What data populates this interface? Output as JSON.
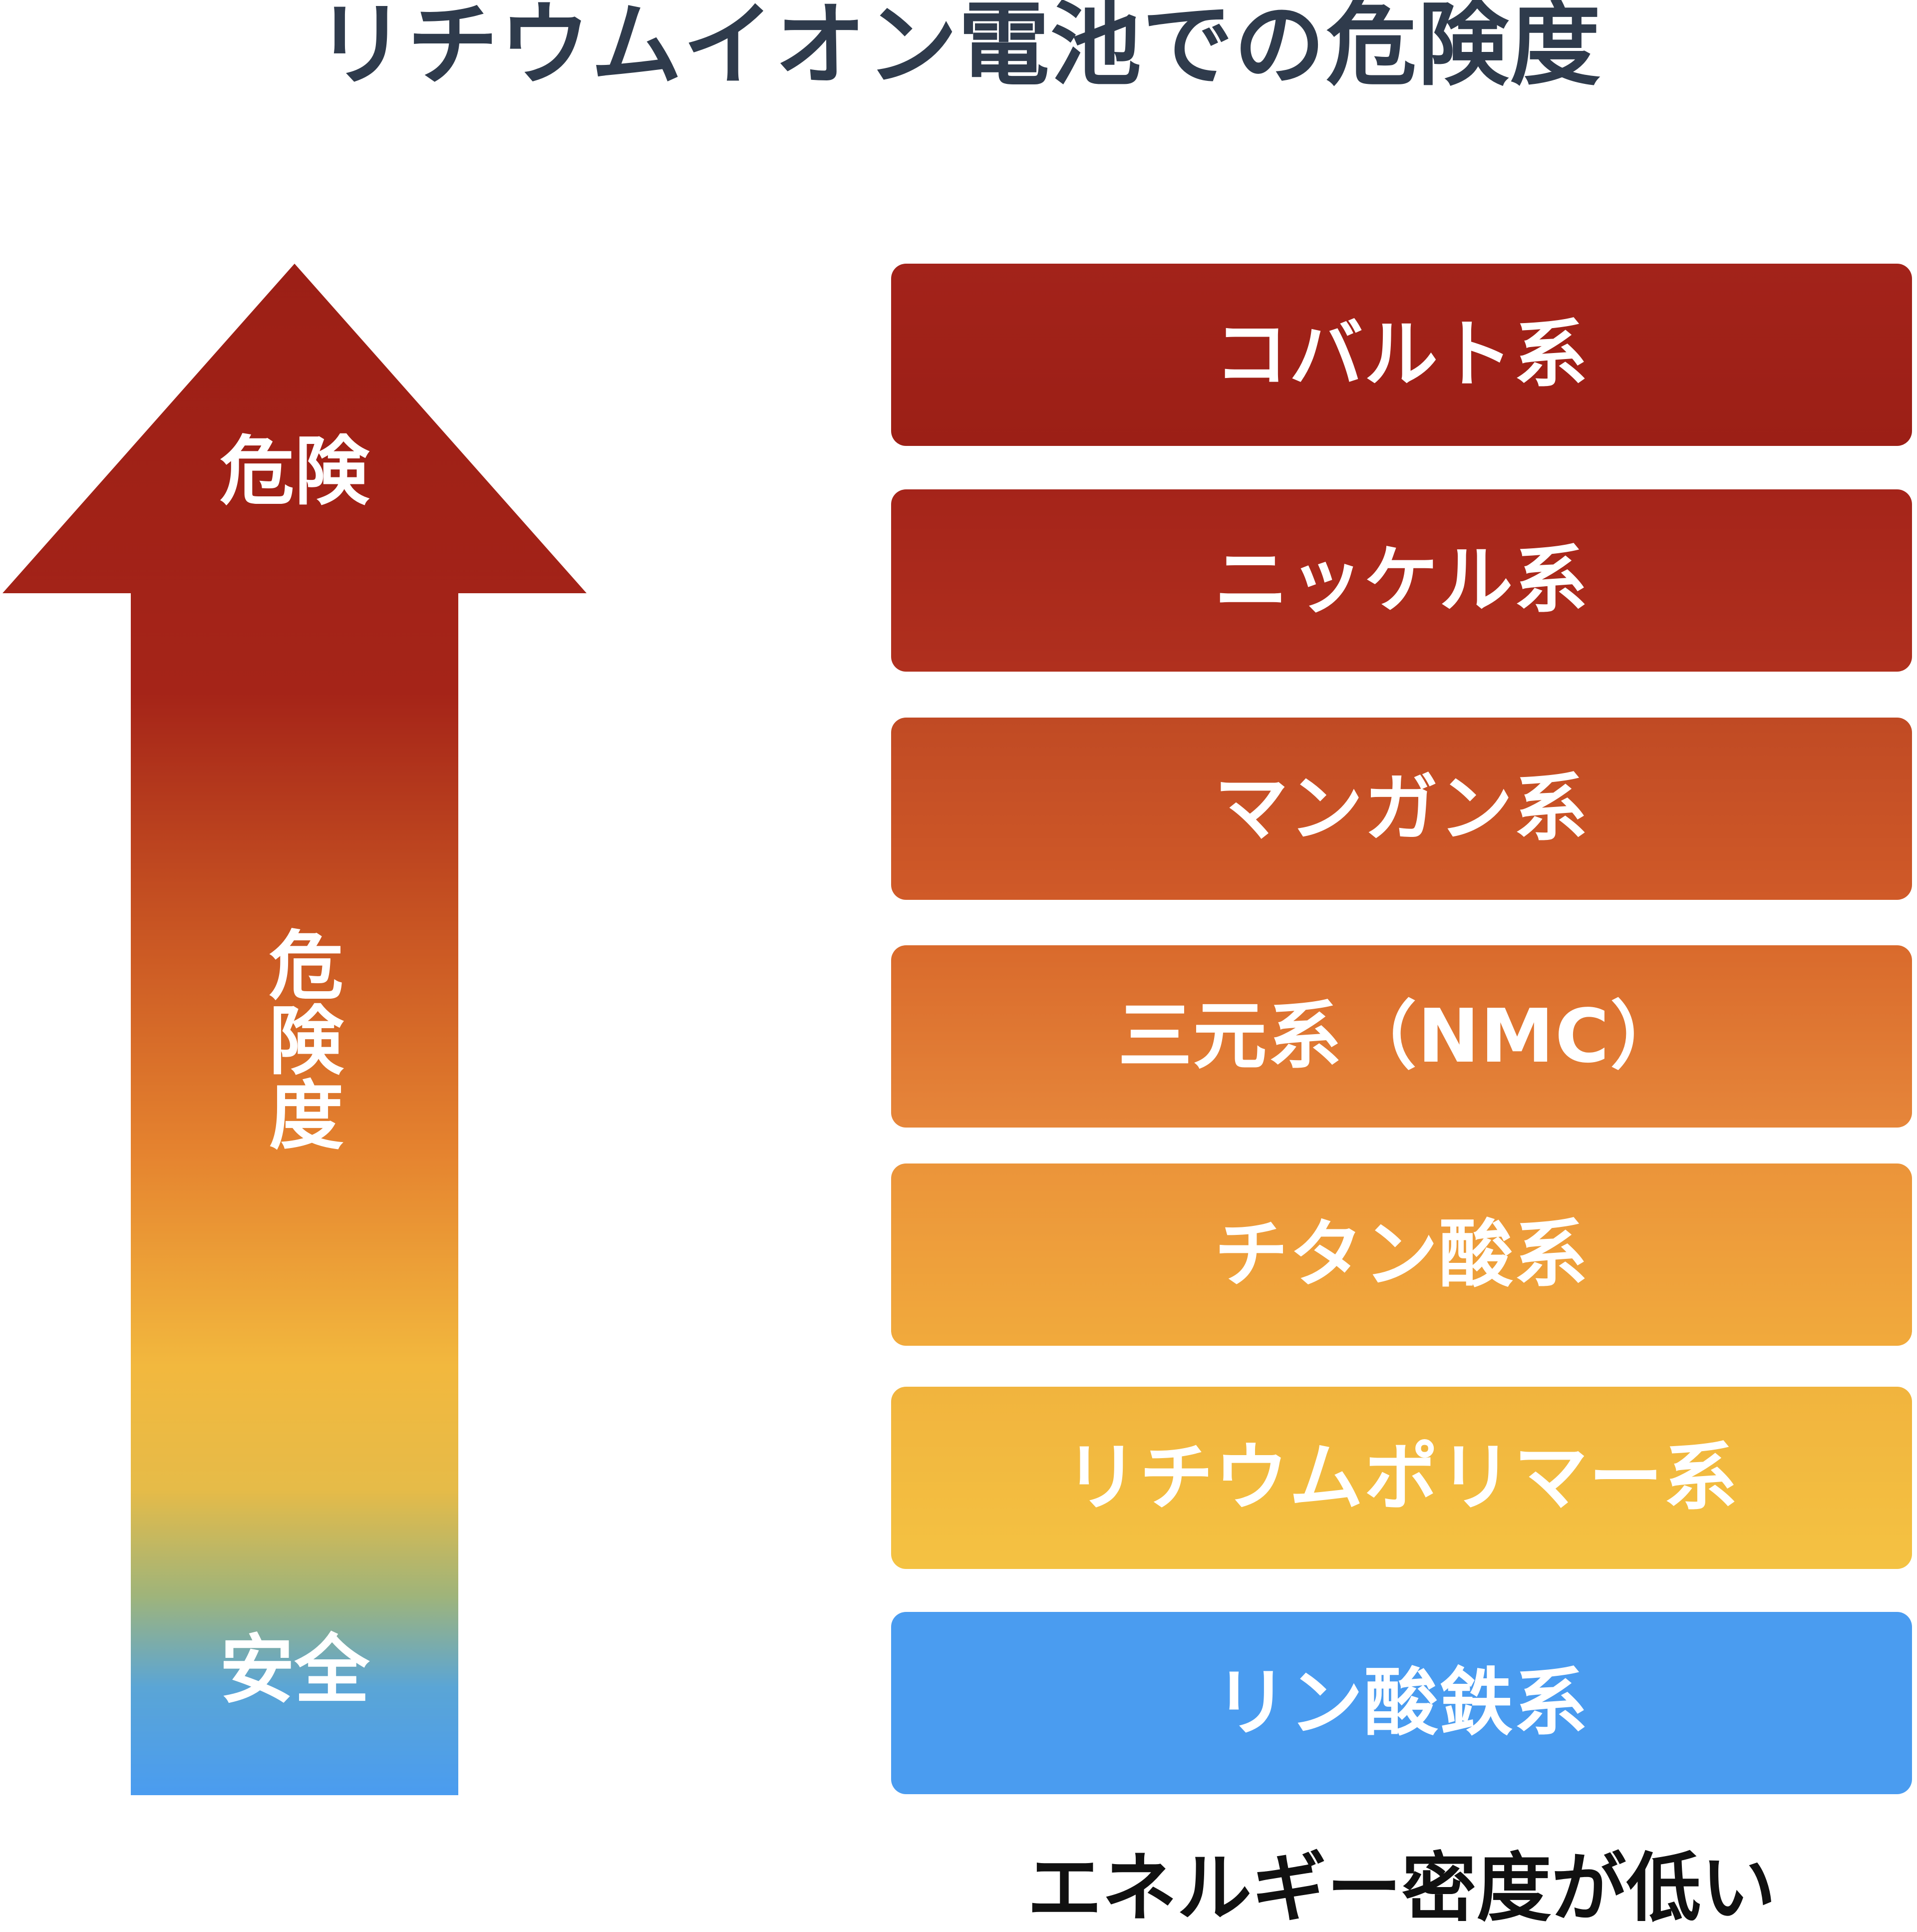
{
  "title": "リチウムイオン電池での危険度",
  "arrow": {
    "top_label": "危険",
    "middle_label": "危険度",
    "bottom_label": "安全",
    "gradient_colors": [
      "#9c1f16",
      "#c4481e",
      "#e07a2e",
      "#f2b83e",
      "#e2b84a",
      "#5aa5d6",
      "#4a9cf0"
    ]
  },
  "battery_types": [
    {
      "label": "コバルト系",
      "color": "#a3231a"
    },
    {
      "label": "ニッケル系",
      "color": "#aa2a1c"
    },
    {
      "label": "マンガン系",
      "color": "#c85226"
    },
    {
      "label": "三元系（NMC）",
      "color": "#e0782f"
    },
    {
      "label": "チタン酸系",
      "color": "#ee9f3b"
    },
    {
      "label": "リチウムポリマー系",
      "color": "#f3bc40"
    },
    {
      "label": "リン酸鉄系",
      "color": "#4a9cf0"
    }
  ],
  "footer_note": "エネルギー密度が低い"
}
